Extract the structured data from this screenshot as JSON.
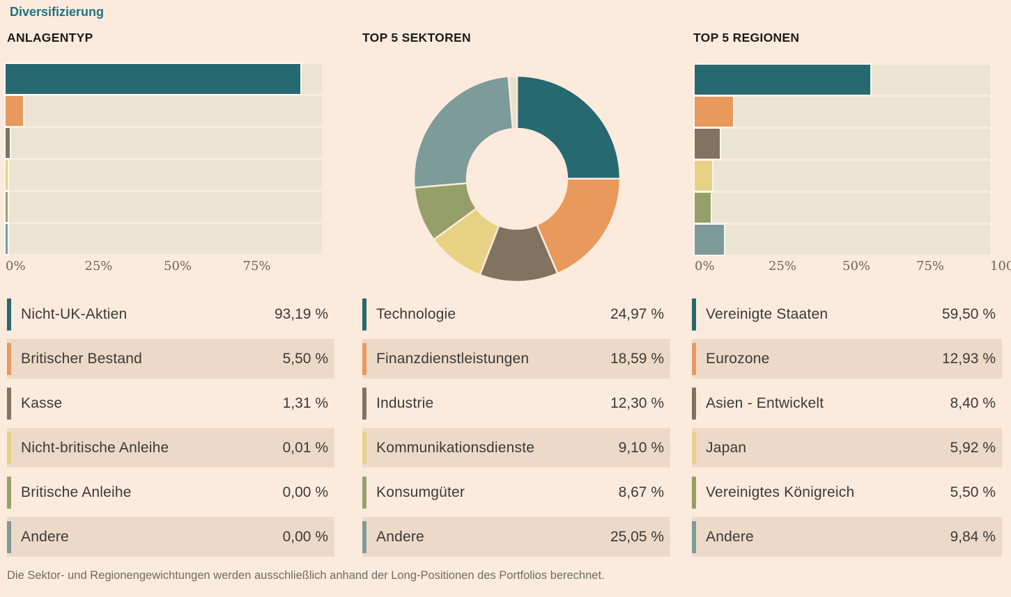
{
  "title": "Diversifizierung",
  "footnote": "Die Sektor- und Regionengewichtungen werden ausschließlich anhand der Long-Positionen des Portfolios berechnet.",
  "colors": {
    "teal": "#266971",
    "orange": "#e9995b",
    "brown": "#81735f",
    "yellow": "#e7d183",
    "olive": "#95a069",
    "slate": "#7d9b98",
    "cream": "#e8e0cd",
    "track": "#ece4d2",
    "alt_row": "#edd9c8",
    "page_bg": "#fcebdd"
  },
  "chart_data": [
    {
      "type": "bar",
      "title": "ANLAGENTYP",
      "orientation": "horizontal",
      "categories": [
        "Nicht-UK-Aktien",
        "Britischer Bestand",
        "Kasse",
        "Nicht-britische Anleihe",
        "Britische Anleihe",
        "Andere"
      ],
      "values": [
        93.19,
        5.5,
        1.31,
        0.01,
        0.0,
        0.0
      ],
      "value_labels": [
        "93,19 %",
        "5,50 %",
        "1,31 %",
        "0,01 %",
        "0,00 %",
        "0,00 %"
      ],
      "colors": [
        "teal",
        "orange",
        "brown",
        "yellow",
        "olive",
        "slate"
      ],
      "xlim": [
        0,
        100
      ],
      "x_ticks": [
        "0%",
        "25%",
        "50%",
        "75%"
      ],
      "grid": false,
      "legend_position": "below"
    },
    {
      "type": "pie",
      "subtype": "donut",
      "title": "TOP 5 SEKTOREN",
      "categories": [
        "Technologie",
        "Finanzdienstleistungen",
        "Industrie",
        "Kommunikationsdienste",
        "Konsumgüter",
        "Andere"
      ],
      "values": [
        24.97,
        18.59,
        12.3,
        9.1,
        8.67,
        25.05
      ],
      "value_labels": [
        "24,97 %",
        "18,59 %",
        "12,30 %",
        "9,10 %",
        "8,67 %",
        "25,05 %"
      ],
      "colors": [
        "teal",
        "orange",
        "brown",
        "yellow",
        "olive",
        "slate"
      ],
      "remainder": {
        "value": 1.32,
        "color": "cream"
      },
      "start_angle_deg": 0,
      "direction": "clockwise",
      "inner_radius_ratio": 0.49,
      "legend_position": "below"
    },
    {
      "type": "bar",
      "title": "TOP 5 REGIONEN",
      "orientation": "horizontal",
      "categories": [
        "Vereinigte Staaten",
        "Eurozone",
        "Asien - Entwickelt",
        "Japan",
        "Vereinigtes Königreich",
        "Andere"
      ],
      "values": [
        59.5,
        12.93,
        8.4,
        5.92,
        5.5,
        9.84
      ],
      "value_labels": [
        "59,50 %",
        "12,93 %",
        "8,40 %",
        "5,92 %",
        "5,50 %",
        "9,84 %"
      ],
      "colors": [
        "teal",
        "orange",
        "brown",
        "yellow",
        "olive",
        "slate"
      ],
      "xlim": [
        0,
        100
      ],
      "x_ticks": [
        "0%",
        "25%",
        "50%",
        "75%",
        "100%"
      ],
      "grid": false,
      "legend_position": "below"
    }
  ]
}
